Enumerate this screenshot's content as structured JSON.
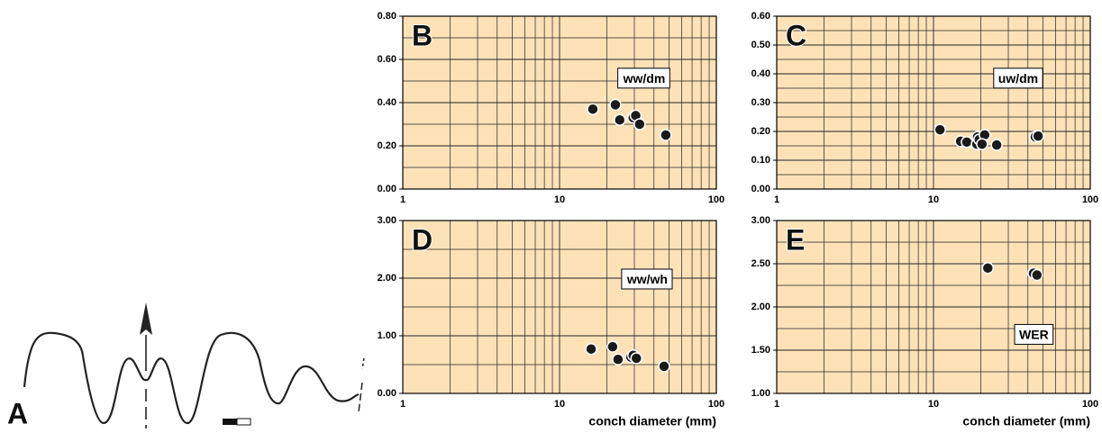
{
  "panel_a": {
    "label": "A"
  },
  "chart_data": [
    {
      "type": "scatter",
      "panel": "B",
      "annotation": "ww/dm",
      "log_x": true,
      "grid": true,
      "color": "#1a1a1a",
      "background": "#fde2b8",
      "xlim": [
        1,
        100
      ],
      "xticks": [
        1,
        10,
        100
      ],
      "ylim": [
        0,
        0.8
      ],
      "yticks": [
        {
          "value": 0,
          "label": "0.00"
        },
        {
          "value": 0.2,
          "label": "0.20"
        },
        {
          "value": 0.4,
          "label": "0.40"
        },
        {
          "value": 0.6,
          "label": "0.60"
        },
        {
          "value": 0.8,
          "label": "0.80"
        }
      ],
      "x": [
        16.3,
        22.7,
        24.2,
        29.5,
        30.6,
        32.4,
        47.6
      ],
      "values": [
        0.37,
        0.39,
        0.32,
        0.33,
        0.34,
        0.3,
        0.25
      ]
    },
    {
      "type": "scatter",
      "panel": "C",
      "annotation": "uw/dm",
      "log_x": true,
      "grid": true,
      "color": "#1a1a1a",
      "background": "#fde2b8",
      "xlim": [
        1,
        100
      ],
      "xticks": [
        1,
        10,
        100
      ],
      "ylim": [
        0,
        0.6
      ],
      "yticks": [
        {
          "value": 0,
          "label": "0.00"
        },
        {
          "value": 0.1,
          "label": "0.10"
        },
        {
          "value": 0.2,
          "label": "0.20"
        },
        {
          "value": 0.3,
          "label": "0.30"
        },
        {
          "value": 0.4,
          "label": "0.40"
        },
        {
          "value": 0.5,
          "label": "0.50"
        },
        {
          "value": 0.6,
          "label": "0.60"
        }
      ],
      "x": [
        11.0,
        14.9,
        16.3,
        18.9,
        19.1,
        19.6,
        21.2,
        20.4,
        25.3,
        44.6,
        46.5
      ],
      "values": [
        0.206,
        0.166,
        0.163,
        0.156,
        0.181,
        0.172,
        0.188,
        0.156,
        0.153,
        0.181,
        0.184
      ]
    },
    {
      "type": "scatter",
      "panel": "D",
      "annotation": "ww/wh",
      "log_x": true,
      "grid": true,
      "color": "#1a1a1a",
      "background": "#fde2b8",
      "xlabel": "conch diameter (mm)",
      "xlim": [
        1,
        100
      ],
      "xticks": [
        1,
        10,
        100
      ],
      "ylim": [
        0,
        3
      ],
      "yticks": [
        {
          "value": 0,
          "label": "0.00"
        },
        {
          "value": 1,
          "label": "1.00"
        },
        {
          "value": 2,
          "label": "2.00"
        },
        {
          "value": 3,
          "label": "3.00"
        }
      ],
      "x": [
        15.9,
        21.8,
        23.6,
        28.5,
        29.5,
        30.9,
        46.4
      ],
      "values": [
        0.77,
        0.81,
        0.59,
        0.63,
        0.66,
        0.61,
        0.47
      ]
    },
    {
      "type": "scatter",
      "panel": "E",
      "annotation": "WER",
      "log_x": true,
      "grid": true,
      "color": "#1a1a1a",
      "background": "#fde2b8",
      "xlabel": "conch diameter (mm)",
      "xlim": [
        1,
        100
      ],
      "xticks": [
        1,
        10,
        100
      ],
      "ylim": [
        1,
        3
      ],
      "yticks": [
        {
          "value": 1,
          "label": "1.00"
        },
        {
          "value": 1.5,
          "label": "1.50"
        },
        {
          "value": 2,
          "label": "2.00"
        },
        {
          "value": 2.5,
          "label": "2.50"
        },
        {
          "value": 3,
          "label": "3.00"
        }
      ],
      "x": [
        22.2,
        43.4,
        45.7
      ],
      "values": [
        2.45,
        2.39,
        2.37
      ]
    }
  ]
}
